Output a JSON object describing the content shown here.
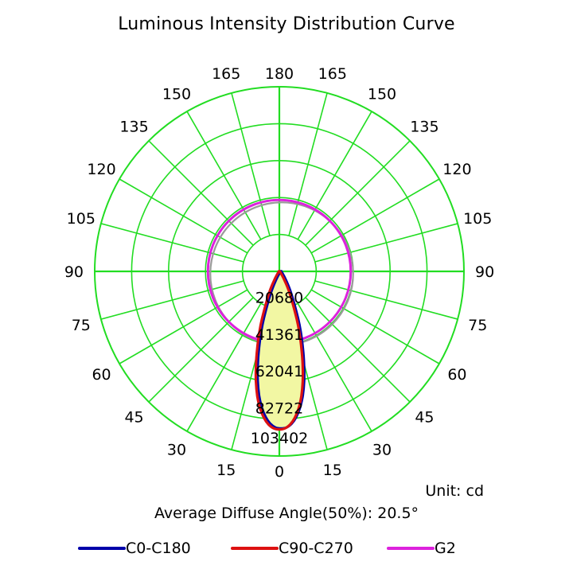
{
  "chart_data": {
    "type": "polar",
    "title": "Luminous Intensity Distribution Curve",
    "unit_text": "Unit: cd",
    "diffuse_angle_text": "Average Diffuse Angle(50%): 20.5°",
    "angle_labels_left": [
      "0",
      "15",
      "30",
      "45",
      "60",
      "75",
      "90",
      "105",
      "120",
      "135",
      "150",
      "165",
      "180"
    ],
    "angle_labels_right": [
      "0",
      "15",
      "30",
      "45",
      "60",
      "75",
      "90",
      "105",
      "120",
      "135",
      "150",
      "165",
      "180"
    ],
    "radial_labels": [
      "20680",
      "41361",
      "62041",
      "82722",
      "103402"
    ],
    "r_max": 103402,
    "grid_color": "#22dd22",
    "series": [
      {
        "name": "C0-C180",
        "color": "#0000aa",
        "angles": [
          0,
          2,
          4,
          6,
          8,
          10,
          12,
          14,
          16,
          18,
          20,
          25,
          30,
          40,
          60,
          90,
          120,
          150,
          180
        ],
        "values": [
          88000,
          87500,
          85500,
          82000,
          77000,
          70500,
          62500,
          53500,
          44500,
          36000,
          28000,
          13500,
          5500,
          1200,
          300,
          100,
          60,
          40,
          20
        ]
      },
      {
        "name": "C90-C270",
        "color": "#dd1111",
        "angles": [
          0,
          2,
          4,
          6,
          8,
          10,
          12,
          14,
          16,
          18,
          20,
          25,
          30,
          40,
          60,
          90,
          120,
          150,
          180
        ],
        "values": [
          88500,
          88000,
          86000,
          82500,
          77500,
          71000,
          63000,
          54000,
          45000,
          36500,
          28500,
          14000,
          6000,
          1300,
          300,
          100,
          60,
          40,
          20
        ]
      },
      {
        "name": "G2",
        "color": "#dd22dd",
        "angles": [
          0,
          30,
          60,
          90,
          120,
          150,
          180
        ],
        "values": [
          40000,
          40000,
          40000,
          40000,
          40000,
          40000,
          40000
        ]
      }
    ],
    "legend": [
      "C0-C180",
      "C90-C270",
      "G2"
    ],
    "legend_position": "bottom"
  }
}
